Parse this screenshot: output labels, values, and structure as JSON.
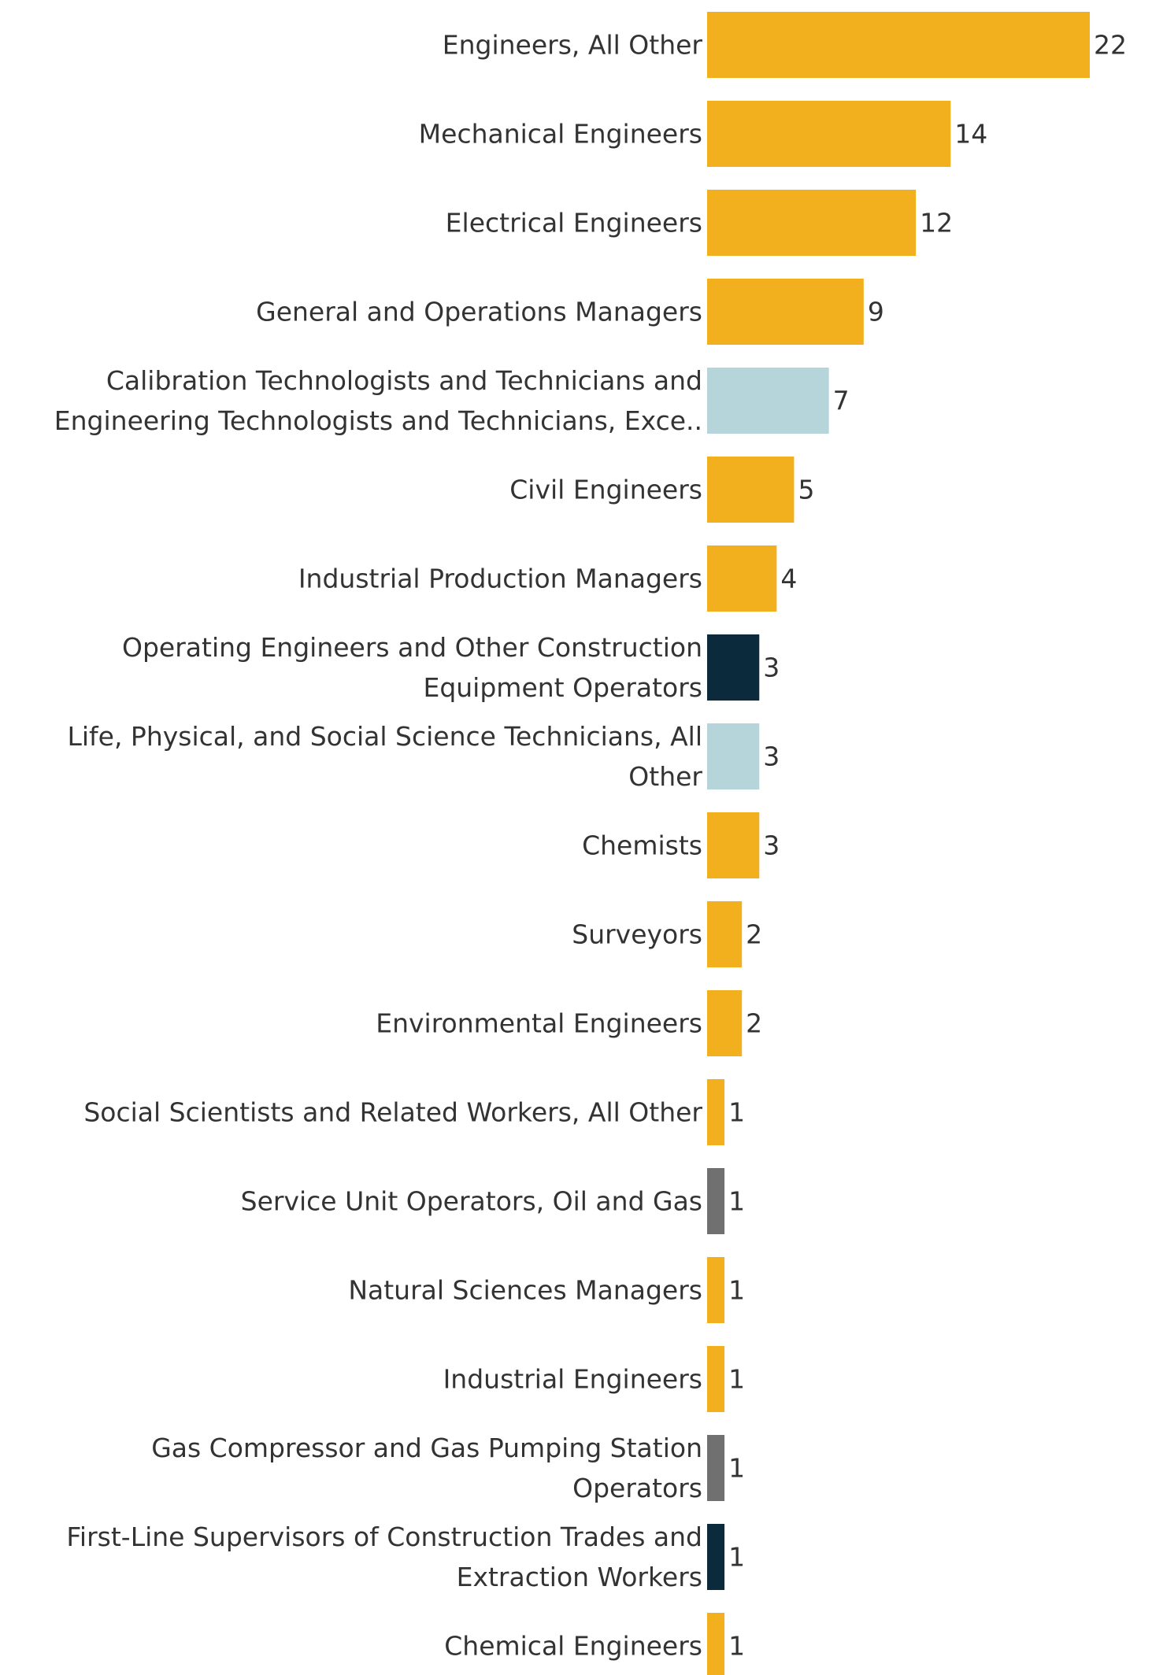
{
  "chart_data": {
    "type": "bar",
    "orientation": "horizontal",
    "title": "",
    "xlabel": "",
    "ylabel": "",
    "xlim": [
      0,
      22
    ],
    "grid": false,
    "legend": "none",
    "categories": [
      "Engineers, All Other",
      "Mechanical Engineers",
      "Electrical Engineers",
      "General and Operations Managers",
      "Calibration Technologists and Technicians and Engineering Technologists and Technicians, Exce..",
      "Civil Engineers",
      "Industrial Production Managers",
      "Operating Engineers and Other Construction Equipment Operators",
      "Life, Physical, and Social Science Technicians, All Other",
      "Chemists",
      "Surveyors",
      "Environmental Engineers",
      "Social Scientists and Related Workers, All Other",
      "Service Unit Operators, Oil and Gas",
      "Natural Sciences Managers",
      "Industrial Engineers",
      "Gas Compressor and Gas Pumping Station Operators",
      "First-Line Supervisors of Construction Trades and Extraction Workers",
      "Chemical Engineers"
    ],
    "category_lines": [
      [
        "Engineers, All Other"
      ],
      [
        "Mechanical Engineers"
      ],
      [
        "Electrical Engineers"
      ],
      [
        "General and Operations Managers"
      ],
      [
        "Calibration Technologists and Technicians and",
        "Engineering Technologists and Technicians, Exce.."
      ],
      [
        "Civil Engineers"
      ],
      [
        "Industrial Production Managers"
      ],
      [
        "Operating Engineers and Other Construction",
        "Equipment Operators"
      ],
      [
        "Life, Physical, and Social Science Technicians, All",
        "Other"
      ],
      [
        "Chemists"
      ],
      [
        "Surveyors"
      ],
      [
        "Environmental Engineers"
      ],
      [
        "Social Scientists and Related Workers, All Other"
      ],
      [
        "Service Unit Operators, Oil and Gas"
      ],
      [
        "Natural Sciences Managers"
      ],
      [
        "Industrial Engineers"
      ],
      [
        "Gas Compressor and Gas Pumping Station",
        "Operators"
      ],
      [
        "First-Line Supervisors of Construction Trades and",
        "Extraction Workers"
      ],
      [
        "Chemical Engineers"
      ]
    ],
    "values": [
      22,
      14,
      12,
      9,
      7,
      5,
      4,
      3,
      3,
      3,
      2,
      2,
      1,
      1,
      1,
      1,
      1,
      1,
      1
    ],
    "bar_colors": [
      "#F2B01E",
      "#F2B01E",
      "#F2B01E",
      "#F2B01E",
      "#B5D5DA",
      "#F2B01E",
      "#F2B01E",
      "#0B2A3C",
      "#B5D5DA",
      "#F2B01E",
      "#F2B01E",
      "#F2B01E",
      "#F2B01E",
      "#707070",
      "#F2B01E",
      "#F2B01E",
      "#707070",
      "#0B2A3C",
      "#F2B01E"
    ]
  }
}
